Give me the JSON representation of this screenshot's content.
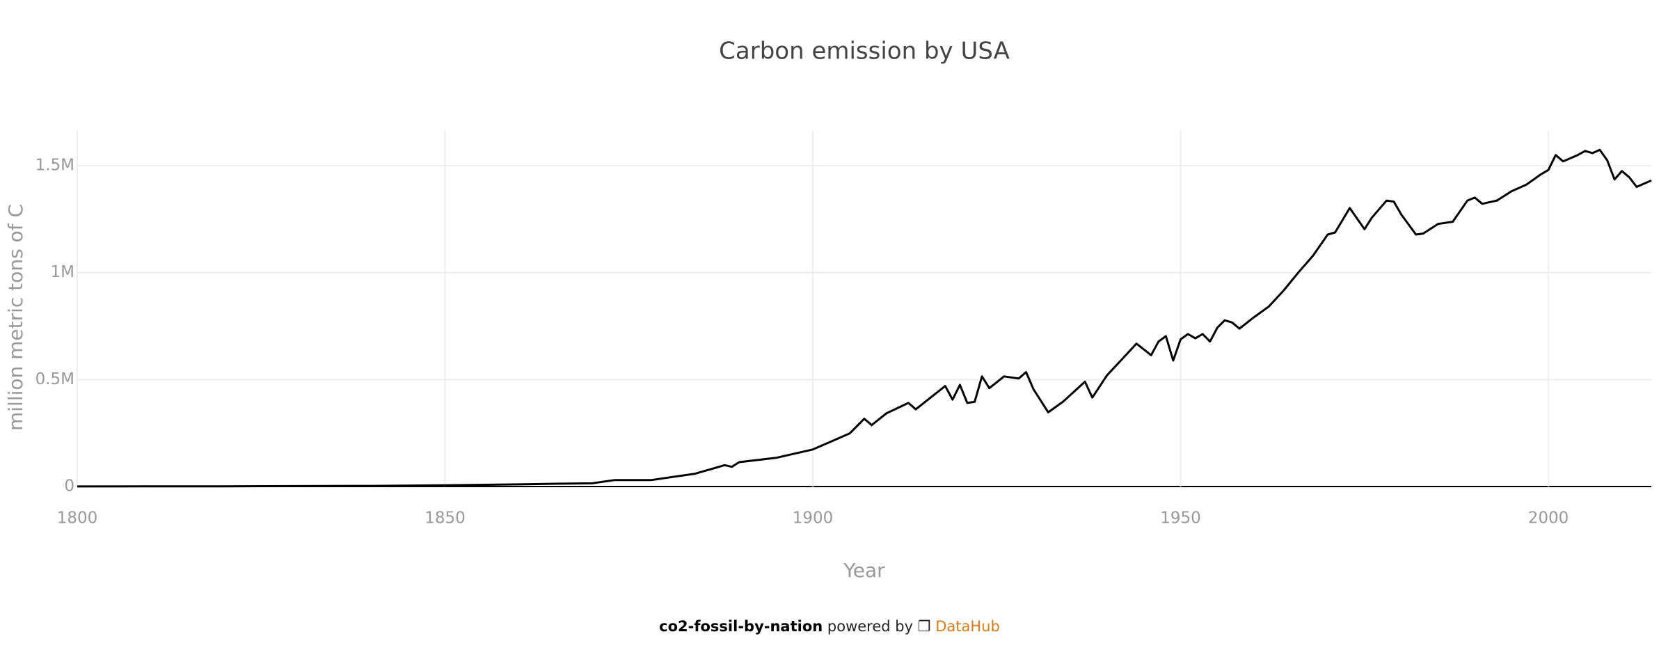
{
  "chart_data": {
    "type": "line",
    "title": "Carbon emission by USA",
    "x_label": "Year",
    "y_label": "million metric tons of C",
    "x": [
      1800,
      1810,
      1820,
      1830,
      1840,
      1850,
      1860,
      1865,
      1870,
      1873,
      1876,
      1878,
      1880,
      1884,
      1888,
      1889,
      1890,
      1895,
      1900,
      1905,
      1907,
      1908,
      1910,
      1913,
      1914,
      1918,
      1919,
      1920,
      1921,
      1922,
      1923,
      1924,
      1926,
      1928,
      1929,
      1930,
      1932,
      1934,
      1937,
      1938,
      1940,
      1942,
      1944,
      1946,
      1947,
      1948,
      1949,
      1950,
      1951,
      1952,
      1953,
      1954,
      1955,
      1956,
      1957,
      1958,
      1960,
      1962,
      1964,
      1966,
      1968,
      1970,
      1971,
      1973,
      1975,
      1976,
      1978,
      1979,
      1980,
      1982,
      1983,
      1985,
      1987,
      1989,
      1990,
      1991,
      1993,
      1995,
      1997,
      1999,
      2000,
      2001,
      2002,
      2004,
      2005,
      2006,
      2007,
      2008,
      2009,
      2010,
      2011,
      2012,
      2014
    ],
    "series": [
      {
        "name": "USA",
        "color": "#000000",
        "values": [
          250,
          500,
          900,
          2000,
          3000,
          6000,
          10000,
          13000,
          15000,
          30000,
          30000,
          30000,
          40000,
          60000,
          100000,
          92000,
          114000,
          134000,
          173000,
          248000,
          317000,
          287000,
          342000,
          391000,
          361000,
          470000,
          406000,
          475000,
          391000,
          396000,
          515000,
          460000,
          515000,
          505000,
          535000,
          455000,
          347000,
          396000,
          490000,
          416000,
          520000,
          594000,
          668000,
          614000,
          678000,
          703000,
          589000,
          688000,
          713000,
          693000,
          713000,
          678000,
          743000,
          777000,
          767000,
          738000,
          792000,
          842000,
          916000,
          1000000,
          1079000,
          1178000,
          1188000,
          1302000,
          1203000,
          1257000,
          1337000,
          1332000,
          1272000,
          1178000,
          1183000,
          1228000,
          1238000,
          1337000,
          1351000,
          1322000,
          1337000,
          1381000,
          1411000,
          1460000,
          1480000,
          1550000,
          1520000,
          1550000,
          1569000,
          1559000,
          1574000,
          1525000,
          1436000,
          1475000,
          1446000,
          1401000,
          1431000
        ]
      }
    ],
    "xlim": [
      1800,
      2014
    ],
    "xticks": [
      1800,
      1850,
      1900,
      1950,
      2000
    ],
    "ylim": [
      0,
      1663000
    ],
    "yticks": [
      0,
      {
        "value": 500000,
        "label": "0.5M"
      },
      {
        "value": 1000000,
        "label": "1M"
      },
      {
        "value": 1500000,
        "label": "1.5M"
      }
    ],
    "grid": true
  },
  "footer": {
    "dataset": "co2-fossil-by-nation",
    "text": "powered by",
    "icon": "❐",
    "link": "DataHub"
  }
}
